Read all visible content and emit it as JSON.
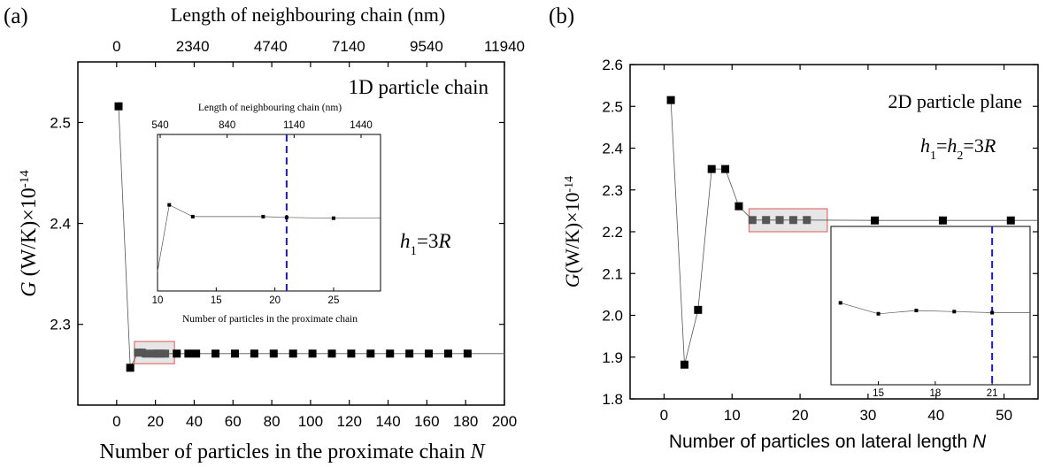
{
  "panels": [
    {
      "label": "(a)",
      "annotation_title": "1D particle chain",
      "annotation_param": "h1=3R",
      "xlabel": "Number of particles in the proximate chain N",
      "ylabel": "G (W/K)×10-14",
      "top_xlabel": "Length of neighbouring chain (nm)",
      "top_ticks": [
        "0",
        "2340",
        "4740",
        "7140",
        "9540",
        "11940"
      ],
      "inset": {
        "top_xlabel": "Length of neighbouring chain (nm)",
        "top_ticks": [
          "540",
          "840",
          "1140",
          "1440"
        ],
        "xlabel": "Number of particles in the proximate chain",
        "xticks": [
          "10",
          "15",
          "20",
          "25"
        ]
      }
    },
    {
      "label": "(b)",
      "annotation_title": "2D particle plane",
      "annotation_param": "h1=h2=3R",
      "xlabel": "Number of particles on lateral length N",
      "ylabel": "G(W/K)×10-14",
      "inset": {
        "xticks": [
          "15",
          "18",
          "21"
        ]
      }
    }
  ],
  "chart_data": [
    {
      "type": "line",
      "panel": "(a)",
      "title": "1D particle chain",
      "xlabel": "Number of particles in the proximate chain N",
      "ylabel": "G (W/K)×10^-14",
      "xlim": [
        -20,
        200
      ],
      "ylim": [
        2.22,
        2.56
      ],
      "xticks": [
        0,
        20,
        40,
        60,
        80,
        100,
        120,
        140,
        160,
        180,
        200
      ],
      "yticks": [
        2.3,
        2.4,
        2.5
      ],
      "x2_label": "Length of neighbouring chain (nm)",
      "x2_ticks": [
        0,
        2340,
        4740,
        7140,
        9540,
        11940
      ],
      "grid": false,
      "x": [
        1,
        7,
        11,
        13,
        15,
        19,
        21,
        23,
        25,
        31,
        37,
        41,
        51,
        61,
        71,
        81,
        91,
        101,
        111,
        121,
        131,
        141,
        151,
        161,
        171,
        181
      ],
      "y": [
        2.516,
        2.257,
        2.272,
        2.272,
        2.271,
        2.271,
        2.271,
        2.271,
        2.271,
        2.271,
        2.271,
        2.271,
        2.271,
        2.271,
        2.271,
        2.271,
        2.271,
        2.271,
        2.271,
        2.271,
        2.271,
        2.271,
        2.271,
        2.271,
        2.271,
        2.271
      ],
      "highlight_range_x": [
        11,
        28
      ],
      "inset": {
        "xlabel": "Number of particles in the proximate chain",
        "x2_label": "Length of neighbouring chain (nm)",
        "xlim": [
          10,
          29
        ],
        "xticks": [
          10,
          15,
          20,
          25
        ],
        "x2_ticks": [
          540,
          840,
          1140,
          1440
        ],
        "x": [
          11,
          13,
          19,
          21,
          25
        ],
        "y": [
          2.273,
          2.2715,
          2.2715,
          2.2714,
          2.2713
        ],
        "dashed_vline_x": 21,
        "dashed_color": "#1a1ad6"
      }
    },
    {
      "type": "line",
      "panel": "(b)",
      "title": "2D particle plane",
      "xlabel": "Number of particles on lateral length N",
      "ylabel": "G(W/K)×10^-14",
      "xlim": [
        -5,
        55
      ],
      "ylim": [
        1.8,
        2.6
      ],
      "xticks": [
        0,
        10,
        20,
        30,
        40,
        50
      ],
      "yticks": [
        1.8,
        1.9,
        2.0,
        2.1,
        2.2,
        2.3,
        2.4,
        2.5,
        2.6
      ],
      "grid": false,
      "x": [
        1,
        3,
        5,
        7,
        9,
        11,
        13,
        15,
        17,
        19,
        21,
        31,
        41,
        51
      ],
      "y": [
        2.515,
        1.882,
        2.013,
        2.35,
        2.35,
        2.261,
        2.228,
        2.228,
        2.228,
        2.228,
        2.228,
        2.227,
        2.227,
        2.227
      ],
      "highlight_range_x": [
        12.5,
        24
      ],
      "inset": {
        "xlim": [
          12.5,
          23
        ],
        "xticks": [
          15,
          18,
          21
        ],
        "x": [
          13,
          15,
          17,
          19,
          21
        ],
        "y": [
          2.2285,
          2.2275,
          2.2278,
          2.2277,
          2.2276
        ],
        "dashed_vline_x": 21,
        "dashed_color": "#1a1ad6"
      }
    }
  ]
}
